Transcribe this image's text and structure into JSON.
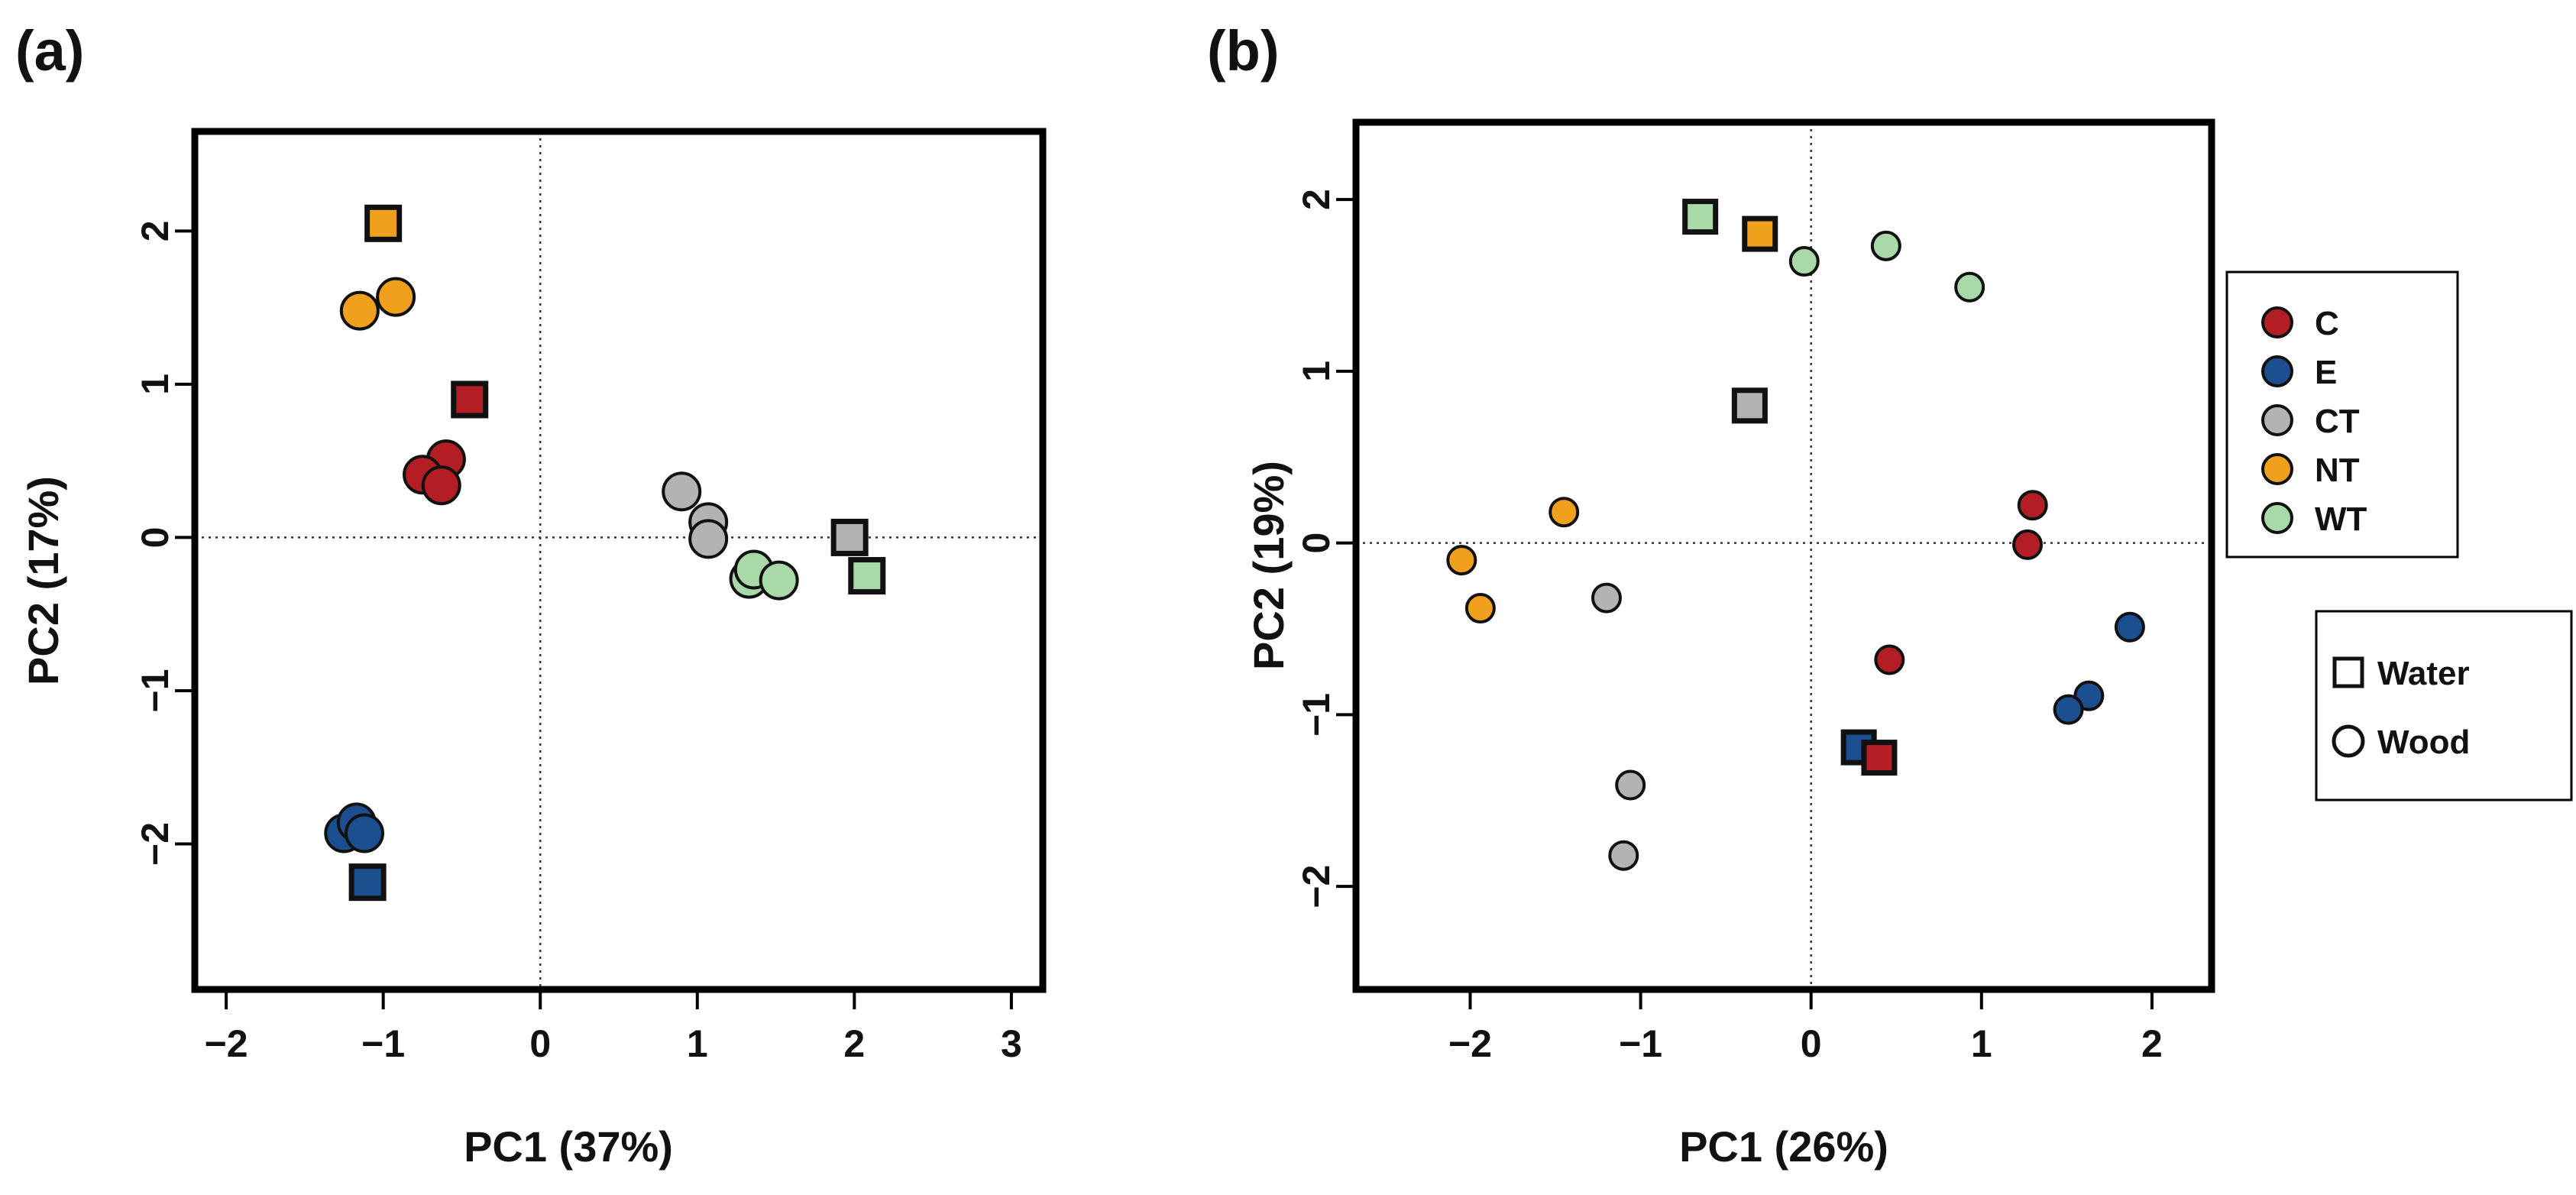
{
  "colors": {
    "C": "#b21e23",
    "E": "#1c4f8f",
    "CT": "#b3b3b3",
    "NT": "#f0a01c",
    "WT": "#a8d9a6"
  },
  "legend": {
    "groups": [
      {
        "key": "C",
        "label": "C"
      },
      {
        "key": "E",
        "label": "E"
      },
      {
        "key": "CT",
        "label": "CT"
      },
      {
        "key": "NT",
        "label": "NT"
      },
      {
        "key": "WT",
        "label": "WT"
      }
    ],
    "shapes": [
      {
        "shape": "square",
        "label": "Water"
      },
      {
        "shape": "circle",
        "label": "Wood"
      }
    ]
  },
  "chart_data": [
    {
      "panel_label": "(a)",
      "type": "scatter",
      "xlabel": "PC1 (37%)",
      "ylabel": "PC2 (17%)",
      "xlim": [
        -2.2,
        3.2
      ],
      "ylim": [
        -2.95,
        2.65
      ],
      "xticks": [
        -2,
        -1,
        0,
        1,
        2,
        3
      ],
      "xtick_labels": [
        "−2",
        "−1",
        "0",
        "1",
        "2",
        "3"
      ],
      "yticks": [
        -2,
        -1,
        0,
        1,
        2
      ],
      "ytick_labels": [
        "−2",
        "−1",
        "0",
        "1",
        "2"
      ],
      "reference_lines": {
        "x": 0,
        "y": 0
      },
      "points": [
        {
          "group": "NT",
          "shape": "square",
          "x": -1.0,
          "y": 2.05
        },
        {
          "group": "NT",
          "shape": "circle",
          "x": -1.15,
          "y": 1.48
        },
        {
          "group": "NT",
          "shape": "circle",
          "x": -0.92,
          "y": 1.57
        },
        {
          "group": "C",
          "shape": "square",
          "x": -0.45,
          "y": 0.9
        },
        {
          "group": "C",
          "shape": "circle",
          "x": -0.6,
          "y": 0.51
        },
        {
          "group": "C",
          "shape": "circle",
          "x": -0.75,
          "y": 0.41
        },
        {
          "group": "C",
          "shape": "circle",
          "x": -0.63,
          "y": 0.34
        },
        {
          "group": "CT",
          "shape": "circle",
          "x": 0.9,
          "y": 0.3
        },
        {
          "group": "CT",
          "shape": "circle",
          "x": 1.07,
          "y": 0.1
        },
        {
          "group": "CT",
          "shape": "circle",
          "x": 1.07,
          "y": -0.01
        },
        {
          "group": "CT",
          "shape": "square",
          "x": 1.97,
          "y": 0.0
        },
        {
          "group": "WT",
          "shape": "circle",
          "x": 1.33,
          "y": -0.27
        },
        {
          "group": "WT",
          "shape": "circle",
          "x": 1.36,
          "y": -0.21
        },
        {
          "group": "WT",
          "shape": "circle",
          "x": 1.52,
          "y": -0.28
        },
        {
          "group": "WT",
          "shape": "square",
          "x": 2.08,
          "y": -0.25
        },
        {
          "group": "E",
          "shape": "circle",
          "x": -1.25,
          "y": -1.93
        },
        {
          "group": "E",
          "shape": "circle",
          "x": -1.17,
          "y": -1.86
        },
        {
          "group": "E",
          "shape": "circle",
          "x": -1.12,
          "y": -1.93
        },
        {
          "group": "E",
          "shape": "square",
          "x": -1.1,
          "y": -2.25
        }
      ]
    },
    {
      "panel_label": "(b)",
      "type": "scatter",
      "xlabel": "PC1 (26%)",
      "ylabel": "PC2 (19%)",
      "xlim": [
        -2.67,
        2.35
      ],
      "ylim": [
        -2.6,
        2.45
      ],
      "xticks": [
        -2,
        -1,
        0,
        1,
        2
      ],
      "xtick_labels": [
        "−2",
        "−1",
        "0",
        "1",
        "2"
      ],
      "yticks": [
        -2,
        -1,
        0,
        1,
        2
      ],
      "ytick_labels": [
        "−2",
        "−1",
        "0",
        "1",
        "2"
      ],
      "reference_lines": {
        "x": 0,
        "y": 0
      },
      "points": [
        {
          "group": "WT",
          "shape": "square",
          "x": -0.65,
          "y": 1.9
        },
        {
          "group": "NT",
          "shape": "square",
          "x": -0.3,
          "y": 1.8
        },
        {
          "group": "WT",
          "shape": "circle",
          "x": -0.04,
          "y": 1.64
        },
        {
          "group": "WT",
          "shape": "circle",
          "x": 0.44,
          "y": 1.73
        },
        {
          "group": "WT",
          "shape": "circle",
          "x": 0.93,
          "y": 1.49
        },
        {
          "group": "CT",
          "shape": "square",
          "x": -0.36,
          "y": 0.8
        },
        {
          "group": "C",
          "shape": "circle",
          "x": 1.3,
          "y": 0.22
        },
        {
          "group": "C",
          "shape": "circle",
          "x": 1.27,
          "y": -0.01
        },
        {
          "group": "NT",
          "shape": "circle",
          "x": -1.45,
          "y": 0.18
        },
        {
          "group": "NT",
          "shape": "circle",
          "x": -2.05,
          "y": -0.1
        },
        {
          "group": "NT",
          "shape": "circle",
          "x": -1.94,
          "y": -0.38
        },
        {
          "group": "CT",
          "shape": "circle",
          "x": -1.2,
          "y": -0.32
        },
        {
          "group": "C",
          "shape": "circle",
          "x": 0.46,
          "y": -0.68
        },
        {
          "group": "E",
          "shape": "circle",
          "x": 1.87,
          "y": -0.49
        },
        {
          "group": "E",
          "shape": "circle",
          "x": 1.63,
          "y": -0.89
        },
        {
          "group": "E",
          "shape": "circle",
          "x": 1.51,
          "y": -0.97
        },
        {
          "group": "E",
          "shape": "square",
          "x": 0.28,
          "y": -1.19
        },
        {
          "group": "C",
          "shape": "square",
          "x": 0.4,
          "y": -1.25
        },
        {
          "group": "CT",
          "shape": "circle",
          "x": -1.06,
          "y": -1.41
        },
        {
          "group": "CT",
          "shape": "circle",
          "x": -1.1,
          "y": -1.82
        }
      ]
    }
  ]
}
